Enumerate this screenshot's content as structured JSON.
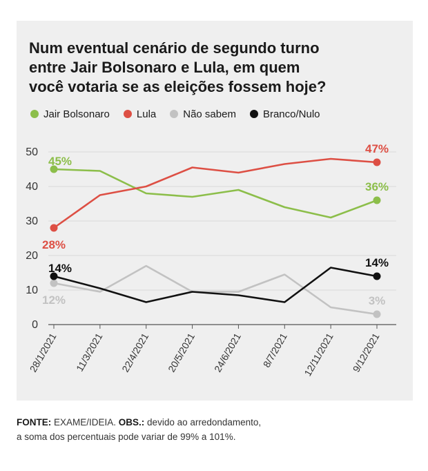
{
  "title_lines": [
    "Num eventual cenário de segundo turno",
    "entre Jair Bolsonaro e Lula, em quem",
    "você votaria se as eleições fossem hoje?"
  ],
  "footer": {
    "source_label": "FONTE:",
    "source_text": " EXAME/IDEIA. ",
    "obs_label": "OBS.:",
    "obs_text_1": " devido ao arredondamento,",
    "obs_text_2": "a soma dos percentuais pode variar de 99% a 101%."
  },
  "chart_data": {
    "type": "line",
    "title": "Num eventual cenário de segundo turno entre Jair Bolsonaro e Lula, em quem você votaria se as eleições fossem hoje?",
    "xlabel": "",
    "ylabel": "",
    "x": [
      "28/1/2021",
      "11/3/2021",
      "22/4/2021",
      "20/5/2021",
      "24/6/2021",
      "8/7/2021",
      "12/11/2021",
      "9/12/2021"
    ],
    "ylim": [
      0,
      50
    ],
    "yticks": [
      0,
      10,
      20,
      30,
      40,
      50
    ],
    "grid": true,
    "legend_position": "top-left",
    "series": [
      {
        "name": "Jair Bolsonaro",
        "color": "#8cbe4a",
        "values": [
          45,
          44.5,
          38,
          37,
          39,
          34,
          31,
          36
        ],
        "labels": [
          {
            "index": 0,
            "text": "45%",
            "pos": "above-right"
          },
          {
            "index": 7,
            "text": "36%",
            "pos": "above"
          }
        ]
      },
      {
        "name": "Lula",
        "color": "#dd4f44",
        "values": [
          28,
          37.5,
          40,
          45.5,
          44,
          46.5,
          48,
          47
        ],
        "labels": [
          {
            "index": 0,
            "text": "28%",
            "pos": "below"
          },
          {
            "index": 7,
            "text": "47%",
            "pos": "above"
          }
        ]
      },
      {
        "name": "Não sabem",
        "color": "#c2c2c2",
        "values": [
          12,
          9.5,
          17,
          9.5,
          9.5,
          14.5,
          5,
          3
        ],
        "labels": [
          {
            "index": 0,
            "text": "12%",
            "pos": "below"
          },
          {
            "index": 7,
            "text": "3%",
            "pos": "above"
          }
        ]
      },
      {
        "name": "Branco/Nulo",
        "color": "#111111",
        "values": [
          14,
          10.5,
          6.5,
          9.5,
          8.5,
          6.5,
          16.5,
          14
        ],
        "labels": [
          {
            "index": 0,
            "text": "14%",
            "pos": "above-right"
          },
          {
            "index": 7,
            "text": "14%",
            "pos": "above"
          }
        ]
      }
    ]
  }
}
